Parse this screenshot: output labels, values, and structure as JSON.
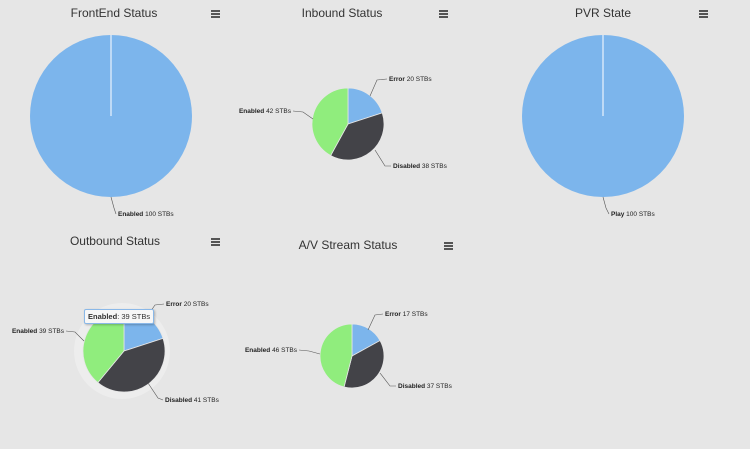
{
  "colors": {
    "blue": "#7cb5ec",
    "green": "#90ed7d",
    "dark": "#434348",
    "bg": "#e6e6e6"
  },
  "menu_icon": "hamburger-menu-icon",
  "tooltip": {
    "label": "Enabled",
    "value": "39 STBs"
  },
  "chart_data": [
    {
      "type": "pie",
      "title": "FrontEnd Status",
      "slices": [
        {
          "name": "Enabled",
          "value": 100,
          "unit": "STBs",
          "color": "#7cb5ec"
        }
      ]
    },
    {
      "type": "pie",
      "title": "Inbound Status",
      "slices": [
        {
          "name": "Error",
          "value": 20,
          "unit": "STBs",
          "color": "#7cb5ec"
        },
        {
          "name": "Disabled",
          "value": 38,
          "unit": "STBs",
          "color": "#434348"
        },
        {
          "name": "Enabled",
          "value": 42,
          "unit": "STBs",
          "color": "#90ed7d"
        }
      ]
    },
    {
      "type": "pie",
      "title": "PVR State",
      "slices": [
        {
          "name": "Play",
          "value": 100,
          "unit": "STBs",
          "color": "#7cb5ec"
        }
      ]
    },
    {
      "type": "pie",
      "title": "Outbound Status",
      "slices": [
        {
          "name": "Error",
          "value": 20,
          "unit": "STBs",
          "color": "#7cb5ec"
        },
        {
          "name": "Disabled",
          "value": 41,
          "unit": "STBs",
          "color": "#434348"
        },
        {
          "name": "Enabled",
          "value": 39,
          "unit": "STBs",
          "color": "#90ed7d"
        }
      ]
    },
    {
      "type": "pie",
      "title": "A/V Stream Status",
      "slices": [
        {
          "name": "Error",
          "value": 17,
          "unit": "STBs",
          "color": "#7cb5ec"
        },
        {
          "name": "Disabled",
          "value": 37,
          "unit": "STBs",
          "color": "#434348"
        },
        {
          "name": "Enabled",
          "value": 46,
          "unit": "STBs",
          "color": "#90ed7d"
        }
      ]
    }
  ]
}
